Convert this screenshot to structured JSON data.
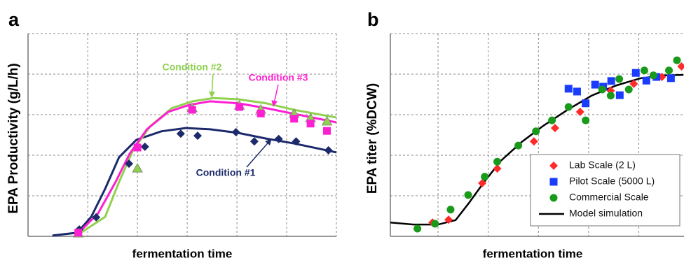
{
  "chart_data": [
    {
      "type": "scatter",
      "panel": "a",
      "ylabel": "EPA Productivity (g/L/h)",
      "xlabel": "fermentation time",
      "xlim": [
        -0.2,
        6
      ],
      "xticks": [
        1,
        2,
        3,
        4,
        5,
        6
      ],
      "ylim": [
        0,
        5
      ],
      "yticks": [
        1,
        2,
        3,
        4,
        5
      ],
      "grid": true,
      "legend": false,
      "series": [
        {
          "name": "Condition #1",
          "color": "#1c2a6b",
          "marker": "diamond",
          "x": [
            0.83,
            1.17,
            1.83,
            2.15,
            2.87,
            3.21,
            3.98,
            4.35,
            4.84,
            5.19,
            5.84
          ],
          "values": [
            0.17,
            0.47,
            1.79,
            2.21,
            2.53,
            2.48,
            2.57,
            2.34,
            2.4,
            2.34,
            2.12
          ],
          "fit_x": [
            0.29,
            0.79,
            1.07,
            1.35,
            1.63,
            1.98,
            2.48,
            2.97,
            3.46,
            4.03,
            4.59,
            5.15,
            6.0
          ],
          "fit_values": [
            0.02,
            0.09,
            0.48,
            1.17,
            1.95,
            2.38,
            2.59,
            2.67,
            2.64,
            2.55,
            2.41,
            2.29,
            2.07
          ]
        },
        {
          "name": "Condition #2",
          "color": "#8fd14f",
          "marker": "triangle",
          "x": [
            0.81,
            2.0,
            3.1,
            4.05,
            4.48,
            5.15,
            5.48,
            5.81
          ],
          "values": [
            0.07,
            1.67,
            3.16,
            3.22,
            3.12,
            3.02,
            2.91,
            2.83
          ],
          "fit_x": [
            0.79,
            1.35,
            1.63,
            1.91,
            2.26,
            2.69,
            3.11,
            3.53,
            4.03,
            4.59,
            5.15,
            6.0
          ],
          "fit_values": [
            0.03,
            0.48,
            1.34,
            2.12,
            2.72,
            3.16,
            3.33,
            3.41,
            3.38,
            3.28,
            3.12,
            2.93
          ]
        },
        {
          "name": "Condition #3",
          "color": "#ff1fd2",
          "marker": "square",
          "x": [
            0.81,
            2.0,
            3.1,
            4.05,
            4.48,
            5.15,
            5.48,
            5.81
          ],
          "values": [
            0.09,
            2.19,
            3.12,
            3.19,
            3.03,
            2.9,
            2.78,
            2.6
          ],
          "fit_x": [
            0.79,
            1.21,
            1.56,
            1.84,
            2.19,
            2.62,
            3.04,
            3.46,
            4.03,
            4.59,
            5.15,
            6.0
          ],
          "fit_values": [
            0.05,
            0.57,
            1.34,
            2.03,
            2.64,
            3.07,
            3.24,
            3.33,
            3.28,
            3.16,
            3.02,
            2.81
          ]
        }
      ]
    },
    {
      "type": "scatter",
      "panel": "b",
      "ylabel": "EPA titer (%DCW)",
      "xlabel": "fermentation time",
      "xlim": [
        0.05,
        5.9
      ],
      "xticks": [
        1,
        2,
        3,
        4,
        5
      ],
      "ylim": [
        0,
        5
      ],
      "yticks": [
        1,
        2,
        3,
        4,
        5
      ],
      "grid": true,
      "legend": "lower right",
      "series": [
        {
          "name": "Lab Scale (2 L)",
          "color": "#ff2a2a",
          "marker": "diamond",
          "x": [
            0.89,
            1.21,
            1.88,
            2.18,
            2.91,
            3.33,
            3.83,
            4.44,
            4.9,
            5.46,
            5.85
          ],
          "values": [
            0.34,
            0.41,
            1.31,
            1.67,
            2.34,
            2.67,
            3.07,
            3.59,
            3.76,
            3.93,
            4.19
          ]
        },
        {
          "name": "Pilot Scale (5000 L)",
          "color": "#1a3cff",
          "marker": "square",
          "x": [
            3.6,
            3.77,
            3.94,
            4.13,
            4.29,
            4.45,
            4.62,
            4.94,
            5.15,
            5.35,
            5.64
          ],
          "values": [
            3.64,
            3.57,
            3.28,
            3.74,
            3.69,
            3.83,
            3.48,
            4.03,
            3.84,
            3.93,
            3.9
          ]
        },
        {
          "name": "Commercial Scale",
          "color": "#1a9a1a",
          "marker": "circle",
          "x": [
            0.59,
            0.94,
            1.25,
            1.6,
            1.93,
            2.18,
            2.6,
            2.95,
            3.27,
            3.6,
            3.94,
            4.27,
            4.44,
            4.61,
            4.8,
            5.11,
            5.29,
            5.6,
            5.76
          ],
          "values": [
            0.19,
            0.31,
            0.66,
            1.02,
            1.47,
            1.84,
            2.24,
            2.59,
            2.86,
            3.19,
            2.86,
            3.62,
            3.47,
            3.88,
            3.62,
            4.09,
            3.97,
            4.09,
            4.34
          ]
        },
        {
          "name": "Model simulation",
          "color": "#000000",
          "marker": "line",
          "x": [
            0.05,
            0.51,
            1.0,
            1.35,
            1.62,
            1.9,
            2.25,
            2.67,
            3.09,
            3.58,
            4.06,
            4.55,
            5.04,
            5.53,
            5.89
          ],
          "values": [
            0.34,
            0.29,
            0.29,
            0.4,
            0.83,
            1.31,
            1.86,
            2.33,
            2.72,
            3.12,
            3.47,
            3.72,
            3.9,
            3.97,
            3.98
          ]
        }
      ]
    }
  ]
}
